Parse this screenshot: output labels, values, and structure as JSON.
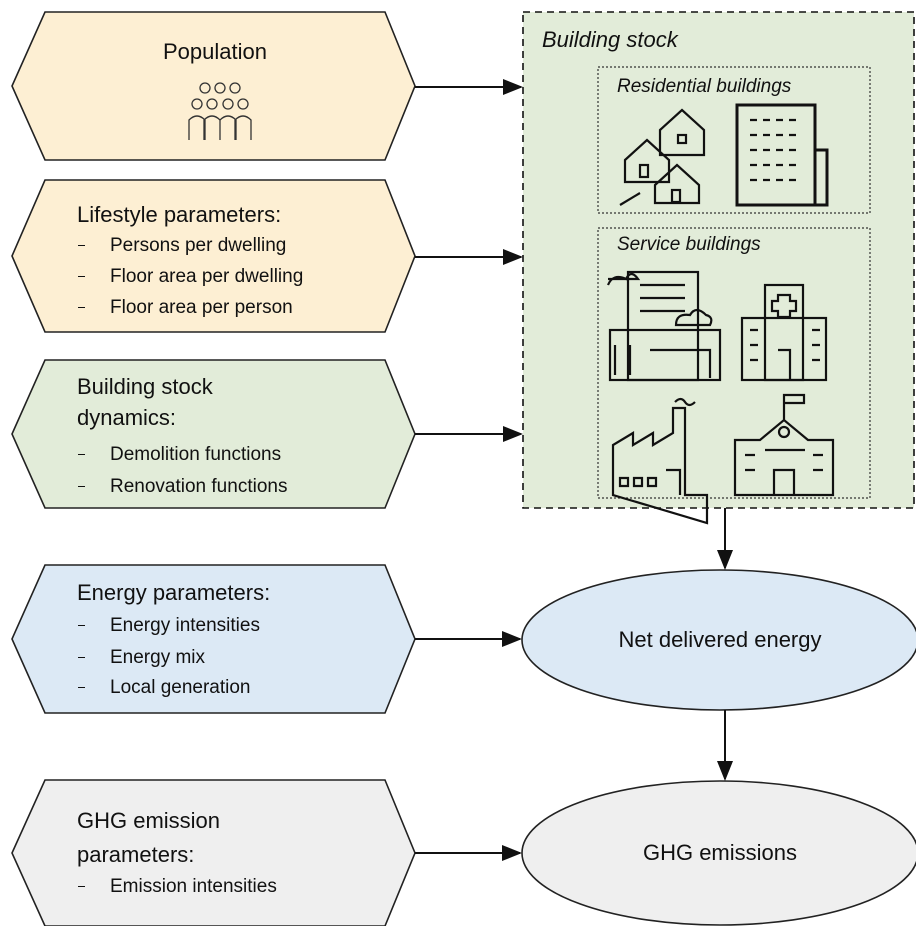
{
  "inputs": [
    {
      "title": "Population"
    },
    {
      "title": "Lifestyle parameters:",
      "items": [
        "Persons per dwelling",
        "Floor area per dwelling",
        "Floor area per person"
      ]
    },
    {
      "title": "Building stock dynamics:",
      "items": [
        "Demolition functions",
        "Renovation functions"
      ]
    },
    {
      "title": "Energy parameters:",
      "items": [
        "Energy intensities",
        "Energy mix",
        "Local generation"
      ]
    },
    {
      "title": "GHG emission parameters:",
      "items": [
        "Emission intensities"
      ]
    }
  ],
  "building_stock": {
    "title": "Building stock",
    "groups": [
      {
        "label": "Residential buildings"
      },
      {
        "label": "Service buildings"
      }
    ]
  },
  "outputs": [
    {
      "label": "Net delivered energy"
    },
    {
      "label": "GHG emissions"
    }
  ]
}
